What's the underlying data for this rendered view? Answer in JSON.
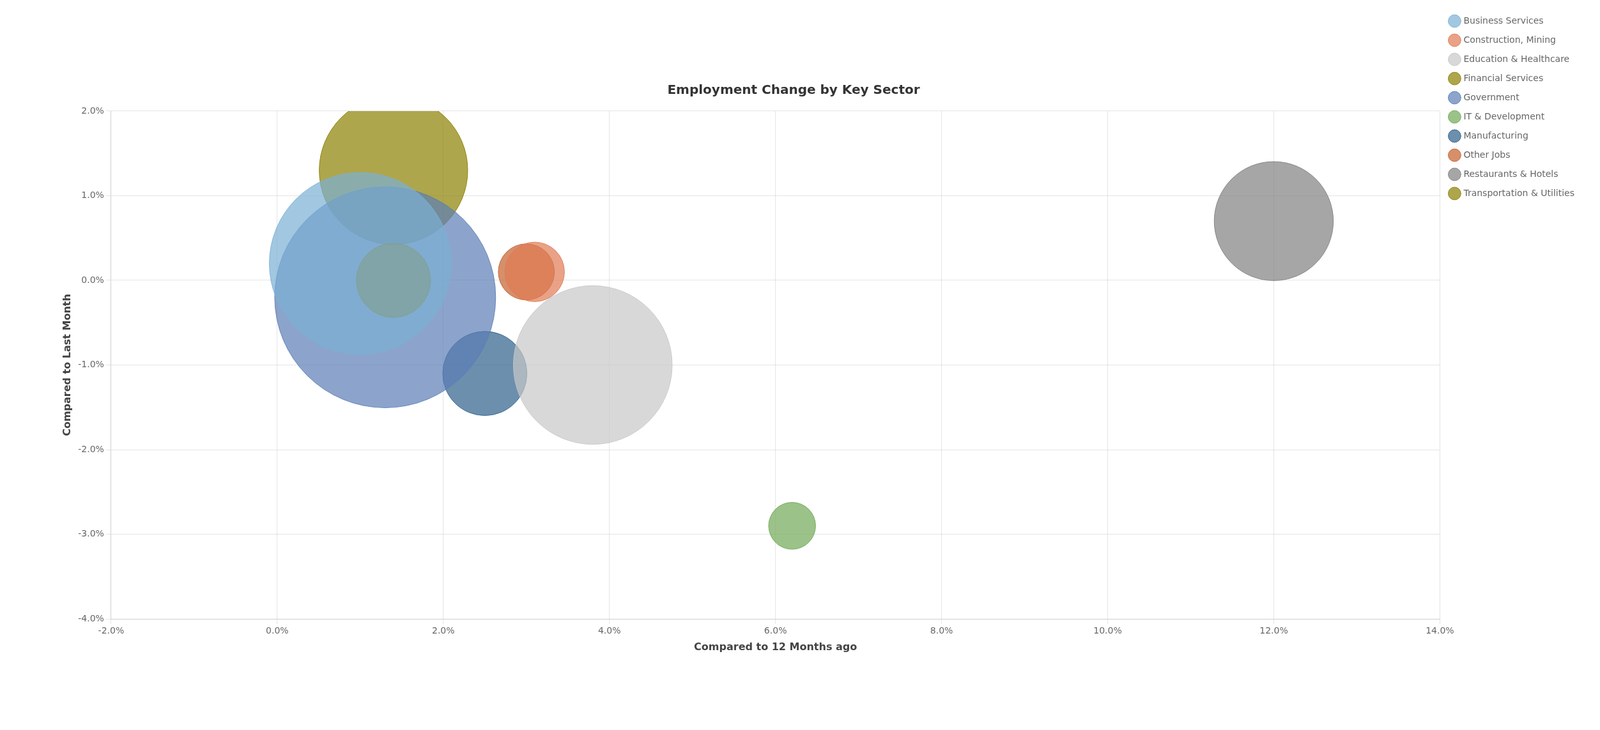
{
  "chart_data": {
    "type": "bubble",
    "title": "Employment Change by Key Sector",
    "xlabel": "Compared to 12 Months ago",
    "ylabel": "Compared to Last Month",
    "xlim": [
      -0.02,
      0.14
    ],
    "ylim": [
      -0.04,
      0.02
    ],
    "xticks": [
      {
        "value": -0.02,
        "label": "-2.0%"
      },
      {
        "value": 0.0,
        "label": "0.0%"
      },
      {
        "value": 0.02,
        "label": "2.0%"
      },
      {
        "value": 0.04,
        "label": "4.0%"
      },
      {
        "value": 0.06,
        "label": "6.0%"
      },
      {
        "value": 0.08,
        "label": "8.0%"
      },
      {
        "value": 0.1,
        "label": "10.0%"
      },
      {
        "value": 0.12,
        "label": "12.0%"
      },
      {
        "value": 0.14,
        "label": "14.0%"
      }
    ],
    "yticks": [
      {
        "value": -0.04,
        "label": "-4.0%"
      },
      {
        "value": -0.03,
        "label": "-3.0%"
      },
      {
        "value": -0.02,
        "label": "-2.0%"
      },
      {
        "value": -0.01,
        "label": "-1.0%"
      },
      {
        "value": 0.0,
        "label": "0.0%"
      },
      {
        "value": 0.01,
        "label": "1.0%"
      },
      {
        "value": 0.02,
        "label": "2.0%"
      }
    ],
    "grid": true,
    "legend": "right",
    "series": [
      {
        "name": "Business Services",
        "color": "#7BAFD4",
        "x": [
          0.01
        ],
        "y": [
          0.002
        ],
        "size": [
          42000
        ]
      },
      {
        "name": "Construction, Mining",
        "color": "#E07B54",
        "x": [
          0.031
        ],
        "y": [
          0.001
        ],
        "size": [
          4500
        ]
      },
      {
        "name": "Education & Healthcare",
        "color": "#C8C8C8",
        "x": [
          0.038
        ],
        "y": [
          -0.01
        ],
        "size": [
          32000
        ]
      },
      {
        "name": "Financial Services",
        "color": "#8B8000",
        "x": [
          0.014
        ],
        "y": [
          0.0
        ],
        "size": [
          7000
        ]
      },
      {
        "name": "Government",
        "color": "#5B7DB5",
        "x": [
          0.013
        ],
        "y": [
          -0.002
        ],
        "size": [
          62000
        ]
      },
      {
        "name": "IT & Development",
        "color": "#70A855",
        "x": [
          0.062
        ],
        "y": [
          -0.029
        ],
        "size": [
          2800
        ]
      },
      {
        "name": "Manufacturing",
        "color": "#2E608A",
        "x": [
          0.025
        ],
        "y": [
          -0.011
        ],
        "size": [
          9000
        ]
      },
      {
        "name": "Other Jobs",
        "color": "#C5602C",
        "x": [
          0.03
        ],
        "y": [
          0.001
        ],
        "size": [
          4000
        ]
      },
      {
        "name": "Restaurants & Hotels",
        "color": "#808080",
        "x": [
          0.12
        ],
        "y": [
          0.007
        ],
        "size": [
          18000
        ]
      },
      {
        "name": "Transportation & Utilities",
        "color": "#8B8000",
        "x": [
          0.014
        ],
        "y": [
          0.013
        ],
        "size": [
          28000
        ]
      }
    ]
  }
}
